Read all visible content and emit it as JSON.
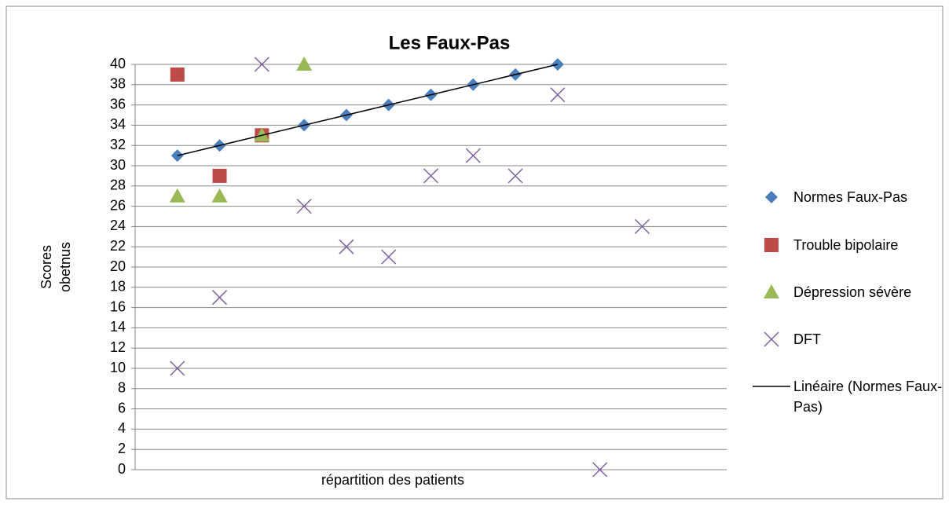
{
  "chart_data": {
    "type": "scatter",
    "title": "Les Faux-Pas",
    "y_label": "Scores obetnus",
    "x_label": "répartition des patients",
    "xlim": [
      0,
      14
    ],
    "ylim": [
      0,
      40
    ],
    "yticks": [
      0,
      2,
      4,
      6,
      8,
      10,
      12,
      14,
      16,
      18,
      20,
      22,
      24,
      26,
      28,
      30,
      32,
      34,
      36,
      38,
      40
    ],
    "grid": true,
    "legend": "right",
    "series": [
      {
        "name": "Normes Faux-Pas",
        "color": "#4a7ebb",
        "marker": "diamond",
        "x": [
          1,
          2,
          3,
          4,
          5,
          6,
          7,
          8,
          9,
          10
        ],
        "values": [
          31,
          32,
          33,
          34,
          35,
          36,
          37,
          38,
          39,
          40
        ]
      },
      {
        "name": "Trouble bipolaire",
        "color": "#be4b48",
        "marker": "square",
        "x": [
          1,
          2,
          3
        ],
        "values": [
          39,
          29,
          33
        ]
      },
      {
        "name": "Dépression sévère",
        "color": "#98b954",
        "marker": "triangle",
        "x": [
          1,
          2,
          3,
          4
        ],
        "values": [
          27,
          27,
          33,
          40
        ]
      },
      {
        "name": "DFT",
        "color": "#7d60a0",
        "marker": "x",
        "x": [
          1,
          2,
          3,
          4,
          5,
          6,
          7,
          8,
          9,
          10,
          11,
          12
        ],
        "values": [
          10,
          17,
          40,
          26,
          22,
          21,
          29,
          31,
          29,
          37,
          0,
          24
        ]
      },
      {
        "name": "Linéaire (Normes Faux-Pas)",
        "color": "#000000",
        "marker": "line",
        "x": [
          1,
          10
        ],
        "values": [
          31,
          40
        ]
      }
    ]
  }
}
